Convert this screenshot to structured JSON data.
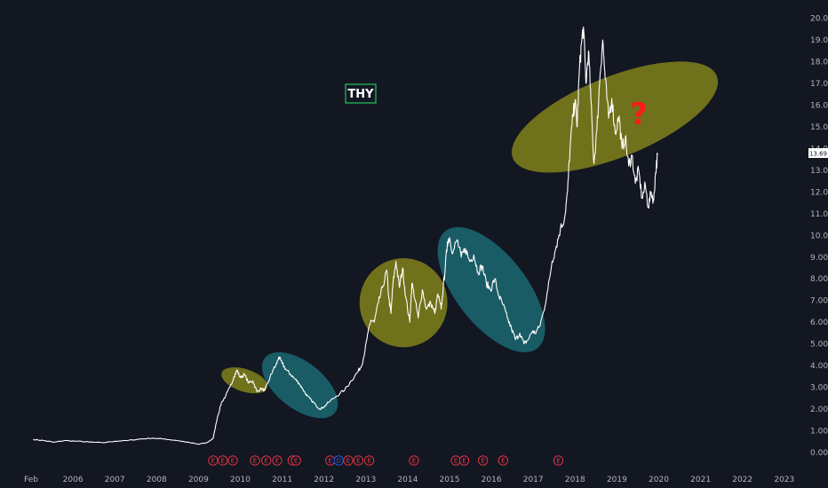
{
  "chart_data": {
    "type": "line",
    "ticker_label": "THY",
    "annotation_text": "?",
    "colors": {
      "background": "#131722",
      "price_line": "#ffffff",
      "ellipse_olive": "#8a8a1a",
      "ellipse_teal": "#1b6f78",
      "label_box_border": "#22c55e",
      "question_mark": "#ff1a1a",
      "earnings": "#f23645",
      "dividend": "#2962ff"
    },
    "x_tick_labels": [
      "Feb",
      "2006",
      "2007",
      "2008",
      "2009",
      "2010",
      "2011",
      "2012",
      "2013",
      "2014",
      "2015",
      "2016",
      "2017",
      "2018",
      "2019",
      "2020",
      "2021",
      "2022",
      "2023"
    ],
    "y_tick_labels": [
      "0.00",
      "1.00",
      "2.00",
      "3.00",
      "4.00",
      "5.00",
      "6.00",
      "7.00",
      "8.00",
      "9.00",
      "10.00",
      "11.00",
      "12.00",
      "13.00",
      "14.00",
      "15.00",
      "16.00",
      "17.00",
      "18.00",
      "19.00",
      "20.00"
    ],
    "ylim": [
      0,
      20
    ],
    "last_price": "13.69",
    "series": [
      {
        "points": [
          [
            2005.05,
            0.6
          ],
          [
            2005.3,
            0.55
          ],
          [
            2005.55,
            0.47
          ],
          [
            2005.8,
            0.55
          ],
          [
            2006.1,
            0.52
          ],
          [
            2006.4,
            0.48
          ],
          [
            2006.7,
            0.45
          ],
          [
            2007.0,
            0.52
          ],
          [
            2007.3,
            0.55
          ],
          [
            2007.6,
            0.62
          ],
          [
            2007.9,
            0.66
          ],
          [
            2008.2,
            0.62
          ],
          [
            2008.5,
            0.55
          ],
          [
            2008.8,
            0.45
          ],
          [
            2009.0,
            0.38
          ],
          [
            2009.2,
            0.45
          ],
          [
            2009.35,
            0.65
          ],
          [
            2009.45,
            1.6
          ],
          [
            2009.55,
            2.3
          ],
          [
            2009.65,
            2.6
          ],
          [
            2009.75,
            3.0
          ],
          [
            2009.85,
            3.5
          ],
          [
            2009.92,
            3.8
          ],
          [
            2010.0,
            3.45
          ],
          [
            2010.1,
            3.6
          ],
          [
            2010.2,
            3.2
          ],
          [
            2010.3,
            3.3
          ],
          [
            2010.4,
            2.8
          ],
          [
            2010.5,
            2.95
          ],
          [
            2010.58,
            2.85
          ],
          [
            2010.68,
            3.3
          ],
          [
            2010.78,
            3.8
          ],
          [
            2010.85,
            4.0
          ],
          [
            2010.92,
            4.4
          ],
          [
            2011.0,
            4.1
          ],
          [
            2011.1,
            3.8
          ],
          [
            2011.2,
            3.6
          ],
          [
            2011.3,
            3.4
          ],
          [
            2011.4,
            3.2
          ],
          [
            2011.5,
            2.9
          ],
          [
            2011.6,
            2.6
          ],
          [
            2011.7,
            2.4
          ],
          [
            2011.8,
            2.2
          ],
          [
            2011.9,
            2.0
          ],
          [
            2012.0,
            2.1
          ],
          [
            2012.1,
            2.3
          ],
          [
            2012.3,
            2.6
          ],
          [
            2012.5,
            2.9
          ],
          [
            2012.65,
            3.3
          ],
          [
            2012.8,
            3.7
          ],
          [
            2012.9,
            4.0
          ],
          [
            2012.98,
            4.7
          ],
          [
            2013.05,
            5.5
          ],
          [
            2013.12,
            6.1
          ],
          [
            2013.2,
            6.0
          ],
          [
            2013.3,
            6.9
          ],
          [
            2013.4,
            7.6
          ],
          [
            2013.5,
            8.4
          ],
          [
            2013.55,
            7.1
          ],
          [
            2013.6,
            6.4
          ],
          [
            2013.65,
            7.8
          ],
          [
            2013.72,
            8.8
          ],
          [
            2013.8,
            7.6
          ],
          [
            2013.88,
            8.5
          ],
          [
            2013.95,
            7.2
          ],
          [
            2014.05,
            6.0
          ],
          [
            2014.1,
            7.8
          ],
          [
            2014.18,
            7.0
          ],
          [
            2014.25,
            6.2
          ],
          [
            2014.35,
            7.5
          ],
          [
            2014.45,
            6.6
          ],
          [
            2014.55,
            6.9
          ],
          [
            2014.65,
            6.4
          ],
          [
            2014.72,
            7.3
          ],
          [
            2014.8,
            6.6
          ],
          [
            2014.85,
            7.6
          ],
          [
            2014.9,
            8.6
          ],
          [
            2014.95,
            9.7
          ],
          [
            2015.0,
            9.9
          ],
          [
            2015.08,
            9.2
          ],
          [
            2015.18,
            9.8
          ],
          [
            2015.28,
            9.0
          ],
          [
            2015.38,
            9.4
          ],
          [
            2015.48,
            8.8
          ],
          [
            2015.58,
            9.1
          ],
          [
            2015.68,
            8.3
          ],
          [
            2015.78,
            8.6
          ],
          [
            2015.88,
            7.8
          ],
          [
            2015.98,
            7.5
          ],
          [
            2016.08,
            8.0
          ],
          [
            2016.18,
            7.2
          ],
          [
            2016.28,
            6.8
          ],
          [
            2016.38,
            6.2
          ],
          [
            2016.48,
            5.7
          ],
          [
            2016.58,
            5.2
          ],
          [
            2016.68,
            5.5
          ],
          [
            2016.78,
            5.0
          ],
          [
            2016.88,
            5.2
          ],
          [
            2016.98,
            5.6
          ],
          [
            2017.05,
            5.5
          ],
          [
            2017.15,
            5.8
          ],
          [
            2017.25,
            6.5
          ],
          [
            2017.35,
            7.5
          ],
          [
            2017.45,
            8.8
          ],
          [
            2017.55,
            9.5
          ],
          [
            2017.65,
            10.3
          ],
          [
            2017.75,
            10.8
          ],
          [
            2017.82,
            12.0
          ],
          [
            2017.88,
            14.0
          ],
          [
            2017.95,
            15.5
          ],
          [
            2018.0,
            16.2
          ],
          [
            2018.05,
            15.0
          ],
          [
            2018.1,
            17.5
          ],
          [
            2018.15,
            18.8
          ],
          [
            2018.2,
            19.6
          ],
          [
            2018.26,
            17.0
          ],
          [
            2018.32,
            18.5
          ],
          [
            2018.38,
            16.2
          ],
          [
            2018.45,
            13.3
          ],
          [
            2018.52,
            14.8
          ],
          [
            2018.6,
            17.5
          ],
          [
            2018.66,
            19.0
          ],
          [
            2018.72,
            17.2
          ],
          [
            2018.8,
            15.4
          ],
          [
            2018.88,
            16.3
          ],
          [
            2018.96,
            14.7
          ],
          [
            2019.05,
            15.5
          ],
          [
            2019.12,
            14.0
          ],
          [
            2019.2,
            14.5
          ],
          [
            2019.28,
            13.2
          ],
          [
            2019.36,
            13.7
          ],
          [
            2019.44,
            12.4
          ],
          [
            2019.52,
            13.0
          ],
          [
            2019.6,
            11.7
          ],
          [
            2019.68,
            12.3
          ],
          [
            2019.75,
            11.3
          ],
          [
            2019.82,
            12.0
          ],
          [
            2019.88,
            11.6
          ],
          [
            2019.92,
            12.8
          ],
          [
            2019.97,
            13.69
          ]
        ]
      }
    ],
    "earnings_markers": [
      "E",
      "E",
      "E",
      "E",
      "E",
      "E",
      "E",
      "E",
      "E",
      "D",
      "E",
      "E",
      "E",
      "E",
      "E",
      "E",
      "E",
      "E",
      "E"
    ],
    "earnings_positions_year": [
      2009.35,
      2009.58,
      2009.82,
      2010.35,
      2010.62,
      2010.88,
      2011.25,
      2011.33,
      2012.15,
      2012.35,
      2012.58,
      2012.82,
      2013.08,
      2014.15,
      2015.15,
      2015.35,
      2015.8,
      2016.28,
      2017.6
    ],
    "highlights": [
      {
        "shape": "ellipse",
        "color": "olive",
        "x_range": [
          2009.75,
          2010.45
        ],
        "y_range": [
          2.45,
          4.2
        ]
      },
      {
        "shape": "ellipse",
        "color": "teal",
        "x_range": [
          2010.65,
          2012.2
        ],
        "y_range": [
          1.7,
          4.5
        ]
      },
      {
        "shape": "ellipse",
        "color": "olive",
        "x_range": [
          2012.85,
          2014.95
        ],
        "y_range": [
          4.85,
          8.95
        ]
      },
      {
        "shape": "ellipse",
        "color": "teal",
        "x_range": [
          2014.9,
          2017.1
        ],
        "y_range": [
          4.8,
          10.2
        ]
      },
      {
        "shape": "ellipse",
        "color": "olive",
        "x_range": [
          2017.7,
          2020.2
        ],
        "y_range": [
          11.0,
          19.9
        ]
      }
    ]
  }
}
